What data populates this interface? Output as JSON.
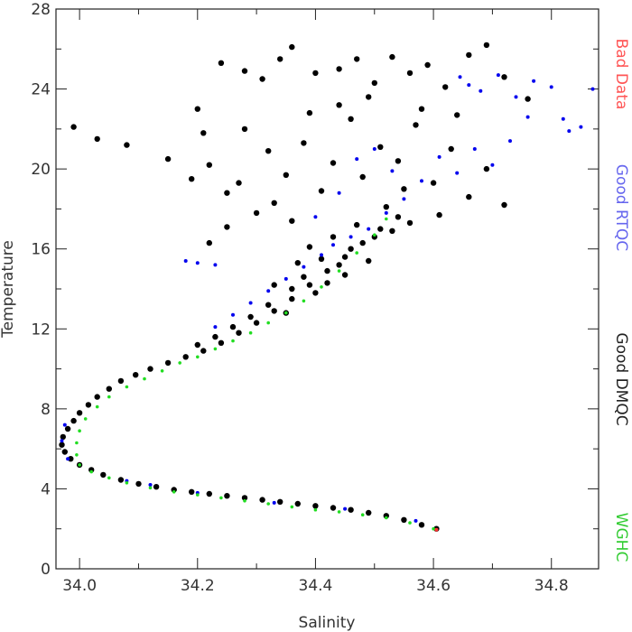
{
  "chart_data": {
    "type": "scatter",
    "title": "",
    "xlabel": "Salinity",
    "ylabel": "Temperature",
    "xlim": [
      33.96,
      34.88
    ],
    "ylim": [
      0,
      28
    ],
    "x_ticks": [
      34.0,
      34.2,
      34.4,
      34.6,
      34.8
    ],
    "x_tick_labels": [
      "34.0",
      "34.2",
      "34.4",
      "34.6",
      "34.8"
    ],
    "y_ticks": [
      0,
      4,
      8,
      12,
      16,
      20,
      24,
      28
    ],
    "y_tick_labels": [
      "0",
      "4",
      "8",
      "12",
      "16",
      "20",
      "24",
      "28"
    ],
    "grid": false,
    "legend_position": "right",
    "legend": [
      {
        "label": "Bad Data",
        "color": "#ff5555"
      },
      {
        "label": "Good RTQC",
        "color": "#6666ee"
      },
      {
        "label": "Good DMQC",
        "color": "#222222"
      },
      {
        "label": "WGHC",
        "color": "#33cc33"
      }
    ],
    "series": [
      {
        "name": "Good DMQC",
        "color": "#000000",
        "points": [
          [
            34.605,
            2.0
          ],
          [
            34.58,
            2.2
          ],
          [
            34.55,
            2.45
          ],
          [
            34.52,
            2.65
          ],
          [
            34.49,
            2.8
          ],
          [
            34.46,
            2.95
          ],
          [
            34.43,
            3.05
          ],
          [
            34.4,
            3.15
          ],
          [
            34.37,
            3.25
          ],
          [
            34.34,
            3.35
          ],
          [
            34.31,
            3.45
          ],
          [
            34.28,
            3.55
          ],
          [
            34.25,
            3.65
          ],
          [
            34.22,
            3.75
          ],
          [
            34.19,
            3.85
          ],
          [
            34.16,
            3.95
          ],
          [
            34.13,
            4.1
          ],
          [
            34.1,
            4.25
          ],
          [
            34.07,
            4.45
          ],
          [
            34.04,
            4.7
          ],
          [
            34.02,
            4.95
          ],
          [
            34.0,
            5.2
          ],
          [
            33.985,
            5.5
          ],
          [
            33.975,
            5.85
          ],
          [
            33.97,
            6.2
          ],
          [
            33.972,
            6.6
          ],
          [
            33.98,
            7.0
          ],
          [
            33.99,
            7.4
          ],
          [
            34.0,
            7.8
          ],
          [
            34.015,
            8.2
          ],
          [
            34.03,
            8.6
          ],
          [
            34.05,
            9.0
          ],
          [
            34.07,
            9.4
          ],
          [
            34.095,
            9.7
          ],
          [
            34.12,
            10.0
          ],
          [
            34.15,
            10.3
          ],
          [
            34.18,
            10.6
          ],
          [
            34.21,
            10.9
          ],
          [
            34.24,
            11.3
          ],
          [
            34.27,
            11.8
          ],
          [
            34.3,
            12.3
          ],
          [
            34.33,
            12.9
          ],
          [
            34.36,
            13.5
          ],
          [
            34.39,
            14.2
          ],
          [
            34.42,
            14.9
          ],
          [
            34.45,
            15.6
          ],
          [
            34.48,
            16.3
          ],
          [
            34.51,
            17.0
          ],
          [
            34.54,
            17.6
          ],
          [
            34.4,
            13.8
          ],
          [
            34.42,
            14.3
          ],
          [
            34.38,
            14.6
          ],
          [
            34.44,
            15.2
          ],
          [
            34.41,
            15.5
          ],
          [
            34.36,
            14.0
          ],
          [
            34.46,
            16.0
          ],
          [
            34.43,
            16.6
          ],
          [
            34.47,
            17.2
          ],
          [
            34.35,
            12.8
          ],
          [
            34.32,
            13.2
          ],
          [
            34.29,
            12.6
          ],
          [
            34.26,
            12.1
          ],
          [
            34.23,
            11.6
          ],
          [
            34.2,
            11.2
          ],
          [
            34.5,
            16.6
          ],
          [
            34.53,
            16.9
          ],
          [
            34.56,
            17.3
          ],
          [
            34.49,
            15.4
          ],
          [
            34.39,
            16.1
          ],
          [
            34.37,
            15.3
          ],
          [
            34.45,
            14.7
          ],
          [
            34.33,
            14.2
          ],
          [
            33.99,
            22.1
          ],
          [
            34.03,
            21.5
          ],
          [
            34.08,
            21.2
          ],
          [
            34.15,
            20.5
          ],
          [
            34.19,
            19.5
          ],
          [
            34.22,
            20.2
          ],
          [
            34.25,
            18.8
          ],
          [
            34.2,
            23.0
          ],
          [
            34.24,
            25.3
          ],
          [
            34.28,
            24.9
          ],
          [
            34.31,
            24.5
          ],
          [
            34.34,
            25.5
          ],
          [
            34.36,
            26.1
          ],
          [
            34.4,
            24.8
          ],
          [
            34.44,
            25.0
          ],
          [
            34.47,
            25.5
          ],
          [
            34.5,
            24.3
          ],
          [
            34.53,
            25.6
          ],
          [
            34.56,
            24.8
          ],
          [
            34.59,
            25.2
          ],
          [
            34.62,
            24.1
          ],
          [
            34.66,
            25.7
          ],
          [
            34.69,
            26.2
          ],
          [
            34.72,
            24.6
          ],
          [
            34.76,
            23.5
          ],
          [
            34.28,
            22.0
          ],
          [
            34.32,
            20.9
          ],
          [
            34.35,
            19.7
          ],
          [
            34.38,
            21.3
          ],
          [
            34.41,
            18.9
          ],
          [
            34.43,
            20.3
          ],
          [
            34.46,
            22.5
          ],
          [
            34.48,
            19.6
          ],
          [
            34.51,
            21.1
          ],
          [
            34.54,
            20.4
          ],
          [
            34.57,
            22.2
          ],
          [
            34.6,
            19.3
          ],
          [
            34.63,
            21.0
          ],
          [
            34.66,
            18.6
          ],
          [
            34.69,
            20.0
          ],
          [
            34.72,
            18.2
          ],
          [
            34.3,
            17.8
          ],
          [
            34.33,
            18.3
          ],
          [
            34.36,
            17.4
          ],
          [
            34.25,
            17.1
          ],
          [
            34.22,
            16.3
          ],
          [
            34.27,
            19.3
          ],
          [
            34.21,
            21.8
          ],
          [
            34.44,
            23.2
          ],
          [
            34.39,
            22.8
          ],
          [
            34.49,
            23.6
          ],
          [
            34.58,
            23.0
          ],
          [
            34.64,
            22.7
          ],
          [
            34.52,
            18.1
          ],
          [
            34.61,
            17.7
          ],
          [
            34.55,
            19.0
          ]
        ]
      },
      {
        "name": "Good RTQC",
        "color": "#0000ee",
        "points": [
          [
            34.645,
            24.6
          ],
          [
            34.66,
            24.2
          ],
          [
            34.68,
            23.9
          ],
          [
            34.71,
            24.7
          ],
          [
            34.74,
            23.6
          ],
          [
            34.77,
            24.4
          ],
          [
            34.8,
            24.1
          ],
          [
            34.82,
            22.5
          ],
          [
            34.83,
            21.9
          ],
          [
            34.85,
            22.1
          ],
          [
            34.87,
            24.0
          ],
          [
            34.76,
            22.6
          ],
          [
            34.73,
            21.4
          ],
          [
            34.7,
            20.2
          ],
          [
            34.67,
            21.0
          ],
          [
            34.64,
            19.8
          ],
          [
            34.61,
            20.6
          ],
          [
            34.58,
            19.4
          ],
          [
            34.55,
            18.5
          ],
          [
            34.52,
            17.8
          ],
          [
            34.49,
            17.0
          ],
          [
            34.46,
            16.6
          ],
          [
            34.43,
            16.2
          ],
          [
            34.41,
            15.7
          ],
          [
            34.38,
            15.1
          ],
          [
            34.35,
            14.5
          ],
          [
            34.32,
            13.9
          ],
          [
            34.29,
            13.3
          ],
          [
            34.26,
            12.7
          ],
          [
            34.23,
            12.1
          ],
          [
            34.2,
            15.3
          ],
          [
            34.23,
            15.2
          ],
          [
            34.18,
            15.4
          ],
          [
            34.4,
            17.6
          ],
          [
            34.44,
            18.8
          ],
          [
            34.47,
            20.5
          ],
          [
            34.5,
            21.0
          ],
          [
            34.53,
            19.9
          ],
          [
            33.975,
            7.2
          ],
          [
            33.97,
            6.4
          ],
          [
            33.98,
            5.5
          ],
          [
            34.08,
            4.4
          ],
          [
            34.12,
            4.2
          ],
          [
            34.2,
            3.8
          ],
          [
            34.33,
            3.3
          ],
          [
            34.45,
            3.0
          ],
          [
            34.57,
            2.4
          ]
        ]
      },
      {
        "name": "WGHC",
        "color": "#22dd22",
        "points": [
          [
            34.6,
            2.0
          ],
          [
            34.56,
            2.3
          ],
          [
            34.52,
            2.55
          ],
          [
            34.48,
            2.7
          ],
          [
            34.44,
            2.85
          ],
          [
            34.4,
            2.95
          ],
          [
            34.36,
            3.1
          ],
          [
            34.32,
            3.25
          ],
          [
            34.28,
            3.4
          ],
          [
            34.24,
            3.55
          ],
          [
            34.2,
            3.7
          ],
          [
            34.16,
            3.85
          ],
          [
            34.12,
            4.05
          ],
          [
            34.08,
            4.3
          ],
          [
            34.05,
            4.55
          ],
          [
            34.02,
            4.85
          ],
          [
            34.0,
            5.2
          ],
          [
            33.995,
            5.7
          ],
          [
            33.995,
            6.3
          ],
          [
            34.0,
            6.9
          ],
          [
            34.01,
            7.5
          ],
          [
            34.03,
            8.1
          ],
          [
            34.05,
            8.6
          ],
          [
            34.08,
            9.1
          ],
          [
            34.11,
            9.5
          ],
          [
            34.14,
            9.9
          ],
          [
            34.17,
            10.3
          ],
          [
            34.2,
            10.6
          ],
          [
            34.23,
            11.0
          ],
          [
            34.26,
            11.4
          ],
          [
            34.29,
            11.8
          ],
          [
            34.32,
            12.3
          ],
          [
            34.35,
            12.8
          ],
          [
            34.38,
            13.4
          ],
          [
            34.41,
            14.1
          ],
          [
            34.44,
            14.9
          ],
          [
            34.47,
            15.8
          ],
          [
            34.5,
            16.7
          ],
          [
            34.52,
            17.5
          ]
        ]
      },
      {
        "name": "Bad Data",
        "color": "#ff3333",
        "points": [
          [
            34.605,
            1.95
          ]
        ]
      }
    ]
  }
}
